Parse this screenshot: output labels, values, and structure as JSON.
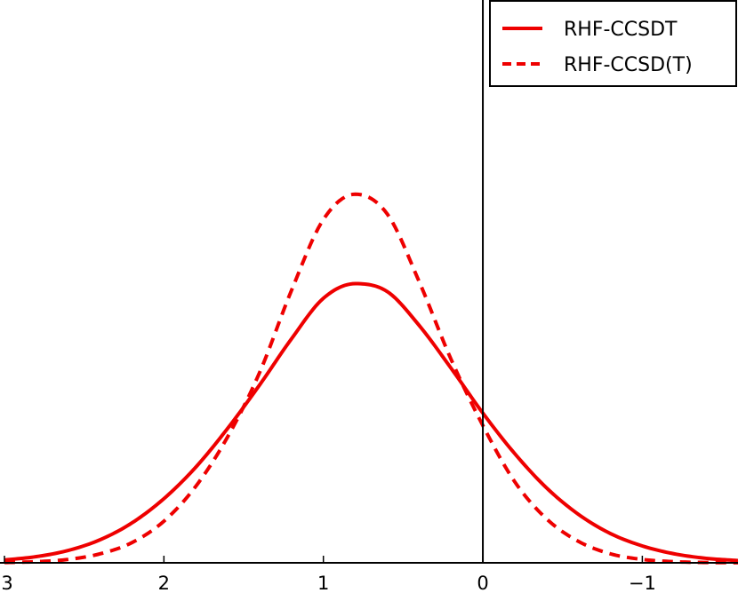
{
  "chart_data": {
    "type": "line",
    "title": "",
    "xlabel": "",
    "ylabel": "",
    "x_reversed": true,
    "xlim": [
      3,
      -1.6
    ],
    "ylim": [
      0,
      1
    ],
    "x_ticks": [
      3,
      2,
      1,
      0,
      -1
    ],
    "x_tick_labels": [
      "3",
      "2",
      "1",
      "0",
      "−1"
    ],
    "vertical_line_x": 0,
    "legend_position": "top-right",
    "series": [
      {
        "name": "RHF-CCSDT",
        "style": "solid",
        "color": "#ee0000",
        "x": [
          3.0,
          2.8,
          2.6,
          2.4,
          2.2,
          2.0,
          1.8,
          1.6,
          1.4,
          1.2,
          1.0,
          0.8,
          0.6,
          0.4,
          0.2,
          0.0,
          -0.2,
          -0.4,
          -0.6,
          -0.8,
          -1.0,
          -1.2,
          -1.4,
          -1.6
        ],
        "y": [
          0.005,
          0.011,
          0.022,
          0.041,
          0.071,
          0.114,
          0.17,
          0.239,
          0.316,
          0.398,
          0.47,
          0.496,
          0.482,
          0.422,
          0.346,
          0.266,
          0.194,
          0.133,
          0.086,
          0.052,
          0.03,
          0.016,
          0.008,
          0.004
        ]
      },
      {
        "name": "RHF-CCSD(T)",
        "style": "dashed",
        "color": "#ee0000",
        "x": [
          3.0,
          2.8,
          2.6,
          2.4,
          2.2,
          2.0,
          1.8,
          1.6,
          1.4,
          1.2,
          1.0,
          0.8,
          0.6,
          0.4,
          0.2,
          0.0,
          -0.2,
          -0.4,
          -0.6,
          -0.8,
          -1.0,
          -1.2,
          -1.4,
          -1.6
        ],
        "y": [
          0.0005,
          0.002,
          0.006,
          0.016,
          0.036,
          0.074,
          0.136,
          0.224,
          0.338,
          0.484,
          0.61,
          0.655,
          0.62,
          0.5,
          0.362,
          0.244,
          0.144,
          0.078,
          0.038,
          0.016,
          0.006,
          0.002,
          0.0006,
          0.0002
        ]
      }
    ]
  }
}
